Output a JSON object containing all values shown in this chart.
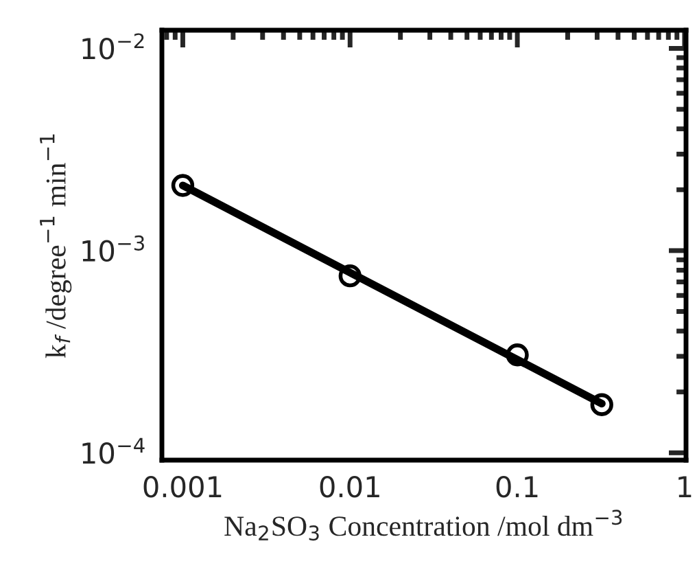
{
  "chart_data": {
    "type": "scatter",
    "xlabel": "Na$_{2}$SO$_{3}$ Concentration /mol dm$^{−3}$",
    "ylabel": "k$_{f}$ /degree$^{−1}$ min$^{−1}$",
    "log": "xy",
    "marker": "circle",
    "xlim": [
      0.00075,
      1.02
    ],
    "ylim": [
      9.2e-05,
      0.0123
    ],
    "xticks": [
      0.001,
      0.01,
      0.1,
      1
    ],
    "yticks": [
      {
        "value": 0.0001,
        "label": "10$^{−4}$"
      },
      {
        "value": 0.001,
        "label": "10$^{−3}$"
      },
      {
        "value": 0.01,
        "label": "10$^{−2}$"
      }
    ],
    "grid": false,
    "legend": false,
    "series": [
      {
        "color": "#000000",
        "x": [
          0.001,
          0.01,
          0.1,
          0.32
        ],
        "values": [
          0.0021,
          0.00075,
          0.000305,
          0.000173
        ]
      },
      {
        "type": "line",
        "color": "#000000",
        "marker": "none",
        "x": [
          0.001,
          0.32
        ],
        "values": [
          0.0021,
          0.000175
        ]
      }
    ]
  }
}
